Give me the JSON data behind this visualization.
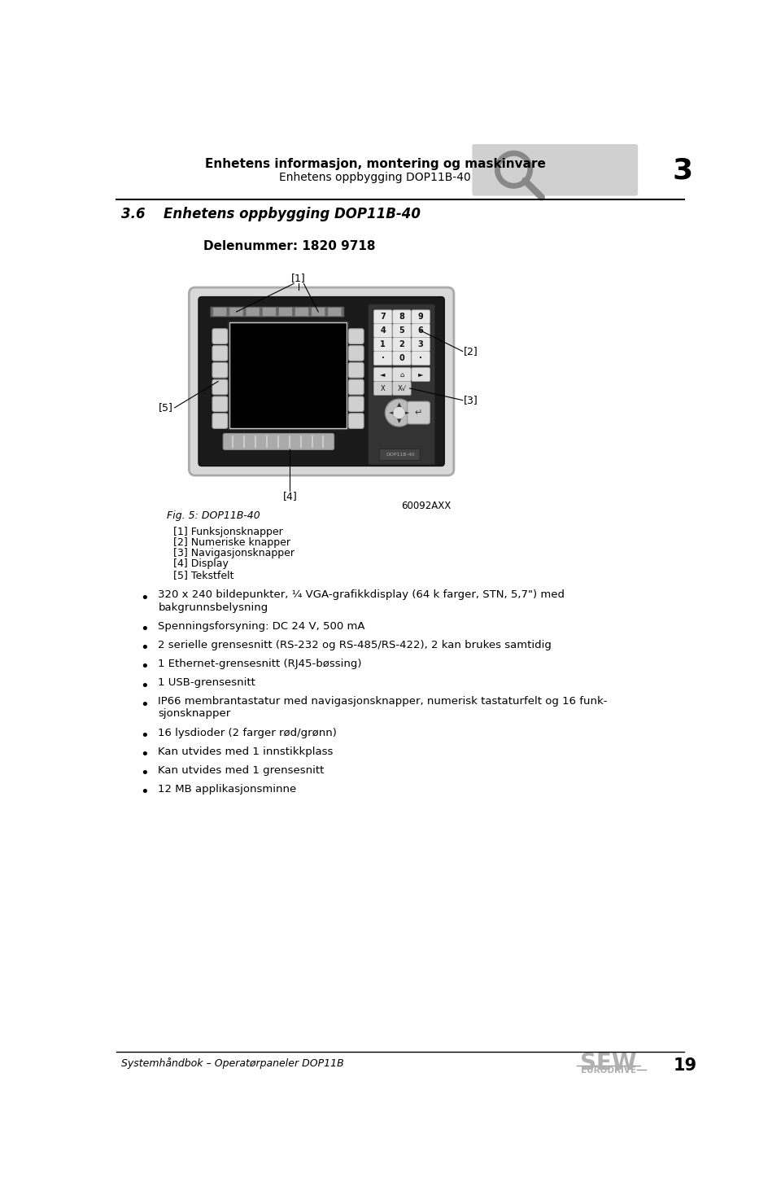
{
  "bg_color": "#ffffff",
  "header_title_bold": "Enhetens informasjon, montering og maskinvare",
  "header_title_normal": "Enhetens oppbygging DOP11B-40",
  "header_chapter_num": "3",
  "section_num": "3.6",
  "section_title": "Enhetens oppbygging DOP11B-40",
  "part_number_label": "Delenummer: 1820 9718",
  "fig_label": "Fig. 5: DOP11B-40",
  "fig_code": "60092AXX",
  "legend_items": [
    "[1] Funksjonsknapper",
    "[2] Numeriske knapper",
    "[3] Navigasjonsknapper",
    "[4] Display",
    "[5] Tekstfelt"
  ],
  "bullet_points": [
    "320 x 240 bildepunkter, ¼ VGA-grafikkdisplay (64 k farger, STN, 5,7\") med\nbakgrunnsbelysning",
    "Spenningsforsyning: DC 24 V, 500 mA",
    "2 serielle grensesnitt (RS-232 og RS-485/RS-422), 2 kan brukes samtidig",
    "1 Ethernet-grensesnitt (RJ45-bøssing)",
    "1 USB-grensesnitt",
    "IP66 membrantastatur med navigasjonsknapper, numerisk tastaturfelt og 16 funk-\nsjonsknapper",
    "16 lysdioder (2 farger rød/grønn)",
    "Kan utvides med 1 innstikkplass",
    "Kan utvides med 1 grensesnitt",
    "12 MB applikasjonsminne"
  ],
  "footer_left": "Systemhåndbok – Operatørpaneler DOP11B",
  "footer_page": "19"
}
